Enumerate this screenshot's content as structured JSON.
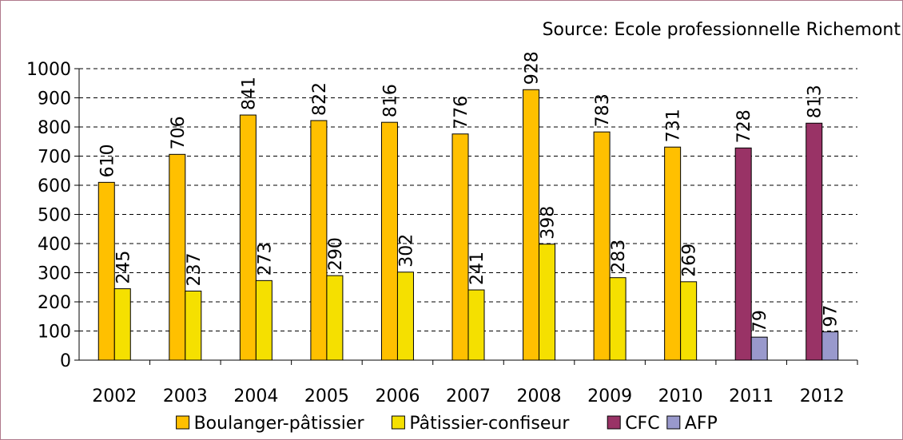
{
  "source_note": "Source: Ecole professionnelle Richemont",
  "chart_data": {
    "type": "bar",
    "categories": [
      "2002",
      "2003",
      "2004",
      "2005",
      "2006",
      "2007",
      "2008",
      "2009",
      "2010",
      "2011",
      "2012"
    ],
    "series": [
      {
        "name": "Boulanger-pâtissier",
        "color": "#ffc000",
        "values": [
          610,
          706,
          841,
          822,
          816,
          776,
          928,
          783,
          731,
          null,
          null
        ]
      },
      {
        "name": "Pâtissier-confiseur",
        "color": "#f5e000",
        "values": [
          245,
          237,
          273,
          290,
          302,
          241,
          398,
          283,
          269,
          null,
          null
        ]
      },
      {
        "name": "CFC",
        "color": "#993366",
        "values": [
          null,
          null,
          null,
          null,
          null,
          null,
          null,
          null,
          null,
          728,
          813
        ]
      },
      {
        "name": "AFP",
        "color": "#9999cc",
        "values": [
          null,
          null,
          null,
          null,
          null,
          null,
          null,
          null,
          null,
          79,
          97
        ]
      }
    ],
    "y_ticks": [
      0,
      100,
      200,
      300,
      400,
      500,
      600,
      700,
      800,
      900,
      1000
    ],
    "ylim": [
      0,
      1000
    ],
    "grid": "horizontal dashed",
    "legend_position": "bottom",
    "data_labels": "vertical, above bars"
  }
}
